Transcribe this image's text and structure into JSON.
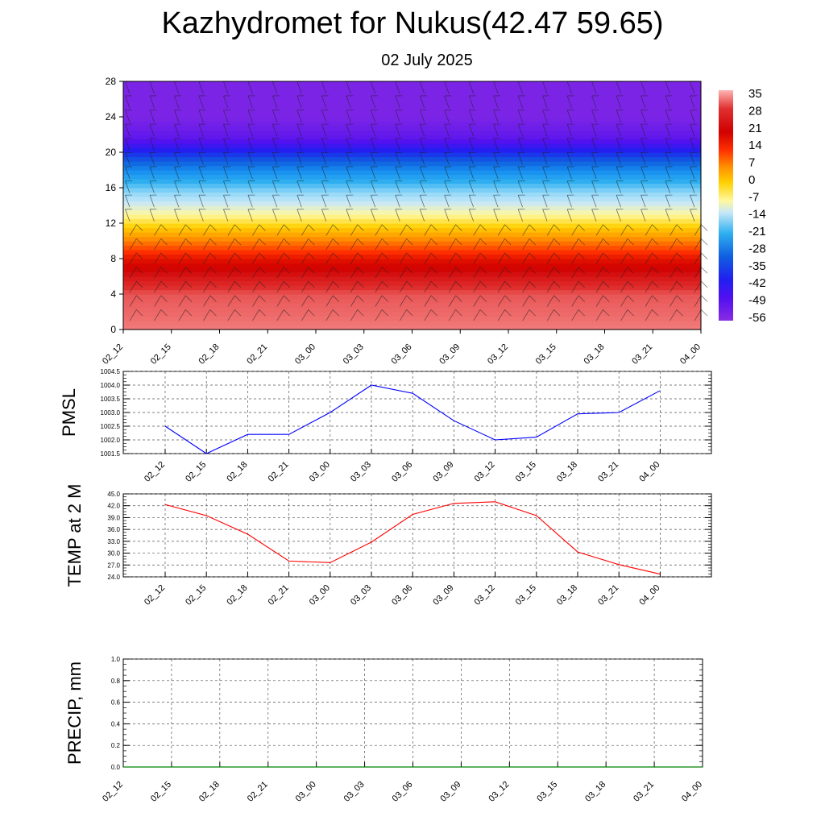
{
  "header": {
    "title": "Kazhydromet for Nukus(42.47 59.65)",
    "subtitle": "02 July 2025"
  },
  "time_labels": [
    "02_12",
    "02_15",
    "02_18",
    "02_21",
    "03_00",
    "03_03",
    "03_06",
    "03_09",
    "03_12",
    "03_15",
    "03_18",
    "03_21",
    "04_00"
  ],
  "chart_data": [
    {
      "type": "heatmap",
      "title": "",
      "xlabel": "",
      "ylabel": "",
      "x": [
        "02_12",
        "02_15",
        "02_18",
        "02_21",
        "03_00",
        "03_03",
        "03_06",
        "03_09",
        "03_12",
        "03_15",
        "03_18",
        "03_21",
        "04_00"
      ],
      "y_ticks": [
        0,
        4,
        8,
        12,
        16,
        20,
        24,
        28
      ],
      "ylim": [
        0,
        28
      ],
      "temperature_profile_by_height": [
        {
          "height": 0,
          "value": 32
        },
        {
          "height": 4,
          "value": 30
        },
        {
          "height": 6,
          "value": 24
        },
        {
          "height": 8,
          "value": 18
        },
        {
          "height": 10,
          "value": 8
        },
        {
          "height": 12,
          "value": -2
        },
        {
          "height": 14,
          "value": -12
        },
        {
          "height": 16,
          "value": -24
        },
        {
          "height": 18,
          "value": -36
        },
        {
          "height": 20,
          "value": -48
        },
        {
          "height": 21.5,
          "value": -58
        },
        {
          "height": 24,
          "value": -62
        },
        {
          "height": 28,
          "value": -62
        }
      ],
      "colorbar_labels": [
        "35",
        "28",
        "21",
        "14",
        "7",
        "0",
        "-7",
        "-14",
        "-21",
        "-28",
        "-35",
        "-42",
        "-49",
        "-56"
      ],
      "overlay": "wind barbs",
      "grid": false
    },
    {
      "type": "line",
      "ylabel": "PMSL",
      "x": [
        "02_12",
        "02_15",
        "02_18",
        "02_21",
        "03_00",
        "03_03",
        "03_06",
        "03_09",
        "03_12",
        "03_15",
        "03_18",
        "03_21",
        "04_00"
      ],
      "series": [
        {
          "values": [
            1002.5,
            1001.5,
            1002.2,
            1002.2,
            1003.0,
            1004.0,
            1003.7,
            1002.7,
            1002.0,
            1002.1,
            1002.95,
            1003.0,
            1003.8
          ],
          "color": "#0000ff"
        }
      ],
      "ylim": [
        1001.5,
        1004.5
      ],
      "y_ticks": [
        "1001.5",
        "1002.0",
        "1002.5",
        "1003.0",
        "1003.5",
        "1004.0",
        "1004.5"
      ],
      "grid": true
    },
    {
      "type": "line",
      "ylabel": "TEMP at 2 M",
      "x": [
        "02_12",
        "02_15",
        "02_18",
        "02_21",
        "03_00",
        "03_03",
        "03_06",
        "03_09",
        "03_12",
        "03_15",
        "03_18",
        "03_21",
        "04_00"
      ],
      "series": [
        {
          "values": [
            42.3,
            39.5,
            34.8,
            28.0,
            27.6,
            32.8,
            39.8,
            42.6,
            43.0,
            39.5,
            30.3,
            27.1,
            24.7
          ],
          "color": "#ff0000"
        }
      ],
      "ylim": [
        24.0,
        45.0
      ],
      "y_ticks": [
        "24.0",
        "27.0",
        "30.0",
        "33.0",
        "36.0",
        "39.0",
        "42.0",
        "45.0"
      ],
      "grid": true
    },
    {
      "type": "line",
      "ylabel": "PRECIP, mm",
      "x": [
        "02_12",
        "02_15",
        "02_18",
        "02_21",
        "03_00",
        "03_03",
        "03_06",
        "03_09",
        "03_12",
        "03_15",
        "03_18",
        "03_21",
        "04_00"
      ],
      "series": [
        {
          "values": [
            0,
            0,
            0,
            0,
            0,
            0,
            0,
            0,
            0,
            0,
            0,
            0,
            0
          ],
          "color": "#008000"
        }
      ],
      "ylim": [
        0.0,
        1.0
      ],
      "y_ticks": [
        "0.0",
        "0.2",
        "0.4",
        "0.6",
        "0.8",
        "1.0"
      ],
      "grid": true
    }
  ]
}
